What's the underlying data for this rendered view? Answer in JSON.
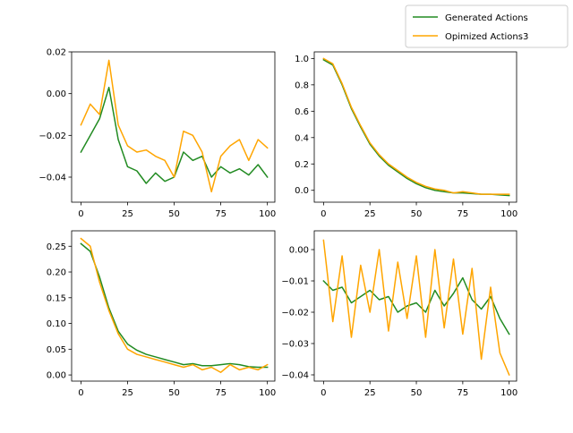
{
  "legend": {
    "placement": "top-right",
    "entries": [
      {
        "label": "Generated Actions",
        "color": "#228b22"
      },
      {
        "label": "Opimized Actions3",
        "color": "#ffa500"
      }
    ]
  },
  "chart_data": [
    {
      "type": "line",
      "xlim": [
        -5,
        104
      ],
      "ylim": [
        -0.052,
        0.02
      ],
      "xticks": [
        0,
        25,
        50,
        75,
        100
      ],
      "xtick_labels": [
        "0",
        "25",
        "50",
        "75",
        "100"
      ],
      "yticks": [
        -0.04,
        -0.02,
        0.0,
        0.02
      ],
      "ytick_labels": [
        "−0.04",
        "−0.02",
        "0.00",
        "0.02"
      ],
      "x": [
        0,
        5,
        10,
        15,
        20,
        25,
        30,
        35,
        40,
        45,
        50,
        55,
        60,
        65,
        70,
        75,
        80,
        85,
        90,
        95,
        100
      ],
      "series": [
        {
          "name": "Generated Actions",
          "color": "#228b22",
          "values": [
            -0.028,
            -0.02,
            -0.012,
            0.003,
            -0.022,
            -0.035,
            -0.037,
            -0.043,
            -0.038,
            -0.042,
            -0.04,
            -0.028,
            -0.032,
            -0.03,
            -0.04,
            -0.035,
            -0.038,
            -0.036,
            -0.039,
            -0.034,
            -0.04
          ]
        },
        {
          "name": "Opimized Actions3",
          "color": "#ffa500",
          "values": [
            -0.015,
            -0.005,
            -0.01,
            0.016,
            -0.015,
            -0.025,
            -0.028,
            -0.027,
            -0.03,
            -0.032,
            -0.04,
            -0.018,
            -0.02,
            -0.028,
            -0.047,
            -0.03,
            -0.025,
            -0.022,
            -0.032,
            -0.022,
            -0.026
          ]
        }
      ]
    },
    {
      "type": "line",
      "xlim": [
        -5,
        104
      ],
      "ylim": [
        -0.09,
        1.05
      ],
      "xticks": [
        0,
        25,
        50,
        75,
        100
      ],
      "xtick_labels": [
        "0",
        "25",
        "50",
        "75",
        "100"
      ],
      "yticks": [
        0.0,
        0.2,
        0.4,
        0.6,
        0.8,
        1.0
      ],
      "ytick_labels": [
        "0.0",
        "0.2",
        "0.4",
        "0.6",
        "0.8",
        "1.0"
      ],
      "x": [
        0,
        5,
        10,
        15,
        20,
        25,
        30,
        35,
        40,
        45,
        50,
        55,
        60,
        65,
        70,
        75,
        80,
        85,
        90,
        95,
        100
      ],
      "series": [
        {
          "name": "Generated Actions",
          "color": "#228b22",
          "values": [
            0.99,
            0.95,
            0.8,
            0.62,
            0.48,
            0.35,
            0.26,
            0.19,
            0.14,
            0.09,
            0.05,
            0.02,
            0.0,
            -0.01,
            -0.02,
            -0.02,
            -0.025,
            -0.03,
            -0.03,
            -0.035,
            -0.04
          ]
        },
        {
          "name": "Opimized Actions3",
          "color": "#ffa500",
          "values": [
            1.0,
            0.96,
            0.81,
            0.63,
            0.49,
            0.36,
            0.27,
            0.2,
            0.15,
            0.1,
            0.06,
            0.03,
            0.01,
            0.0,
            -0.02,
            -0.01,
            -0.02,
            -0.03,
            -0.03,
            -0.03,
            -0.03
          ]
        }
      ]
    },
    {
      "type": "line",
      "xlim": [
        -5,
        104
      ],
      "ylim": [
        -0.012,
        0.28
      ],
      "xticks": [
        0,
        25,
        50,
        75,
        100
      ],
      "xtick_labels": [
        "0",
        "25",
        "50",
        "75",
        "100"
      ],
      "yticks": [
        0.0,
        0.05,
        0.1,
        0.15,
        0.2,
        0.25
      ],
      "ytick_labels": [
        "0.00",
        "0.05",
        "0.10",
        "0.15",
        "0.20",
        "0.25"
      ],
      "x": [
        0,
        5,
        10,
        15,
        20,
        25,
        30,
        35,
        40,
        45,
        50,
        55,
        60,
        65,
        70,
        75,
        80,
        85,
        90,
        95,
        100
      ],
      "series": [
        {
          "name": "Generated Actions",
          "color": "#228b22",
          "values": [
            0.255,
            0.24,
            0.19,
            0.13,
            0.085,
            0.06,
            0.048,
            0.04,
            0.035,
            0.03,
            0.025,
            0.02,
            0.022,
            0.018,
            0.018,
            0.02,
            0.022,
            0.02,
            0.016,
            0.015,
            0.015
          ]
        },
        {
          "name": "Opimized Actions3",
          "color": "#ffa500",
          "values": [
            0.265,
            0.25,
            0.18,
            0.125,
            0.08,
            0.05,
            0.04,
            0.035,
            0.03,
            0.025,
            0.02,
            0.015,
            0.02,
            0.01,
            0.015,
            0.005,
            0.02,
            0.01,
            0.015,
            0.01,
            0.02
          ]
        }
      ]
    },
    {
      "type": "line",
      "xlim": [
        -5,
        104
      ],
      "ylim": [
        -0.042,
        0.006
      ],
      "xticks": [
        0,
        25,
        50,
        75,
        100
      ],
      "xtick_labels": [
        "0",
        "25",
        "50",
        "75",
        "100"
      ],
      "yticks": [
        -0.04,
        -0.03,
        -0.02,
        -0.01,
        0.0
      ],
      "ytick_labels": [
        "−0.04",
        "−0.03",
        "−0.02",
        "−0.01",
        "0.00"
      ],
      "x": [
        0,
        5,
        10,
        15,
        20,
        25,
        30,
        35,
        40,
        45,
        50,
        55,
        60,
        65,
        70,
        75,
        80,
        85,
        90,
        95,
        100
      ],
      "series": [
        {
          "name": "Generated Actions",
          "color": "#228b22",
          "values": [
            -0.01,
            -0.013,
            -0.012,
            -0.017,
            -0.015,
            -0.013,
            -0.016,
            -0.015,
            -0.02,
            -0.018,
            -0.017,
            -0.02,
            -0.013,
            -0.018,
            -0.014,
            -0.009,
            -0.016,
            -0.019,
            -0.015,
            -0.022,
            -0.027
          ]
        },
        {
          "name": "Opimized Actions3",
          "color": "#ffa500",
          "values": [
            0.003,
            -0.023,
            -0.002,
            -0.028,
            -0.005,
            -0.02,
            0.0,
            -0.026,
            -0.004,
            -0.022,
            -0.002,
            -0.028,
            0.0,
            -0.025,
            -0.003,
            -0.027,
            -0.006,
            -0.035,
            -0.012,
            -0.033,
            -0.04
          ]
        }
      ]
    }
  ]
}
